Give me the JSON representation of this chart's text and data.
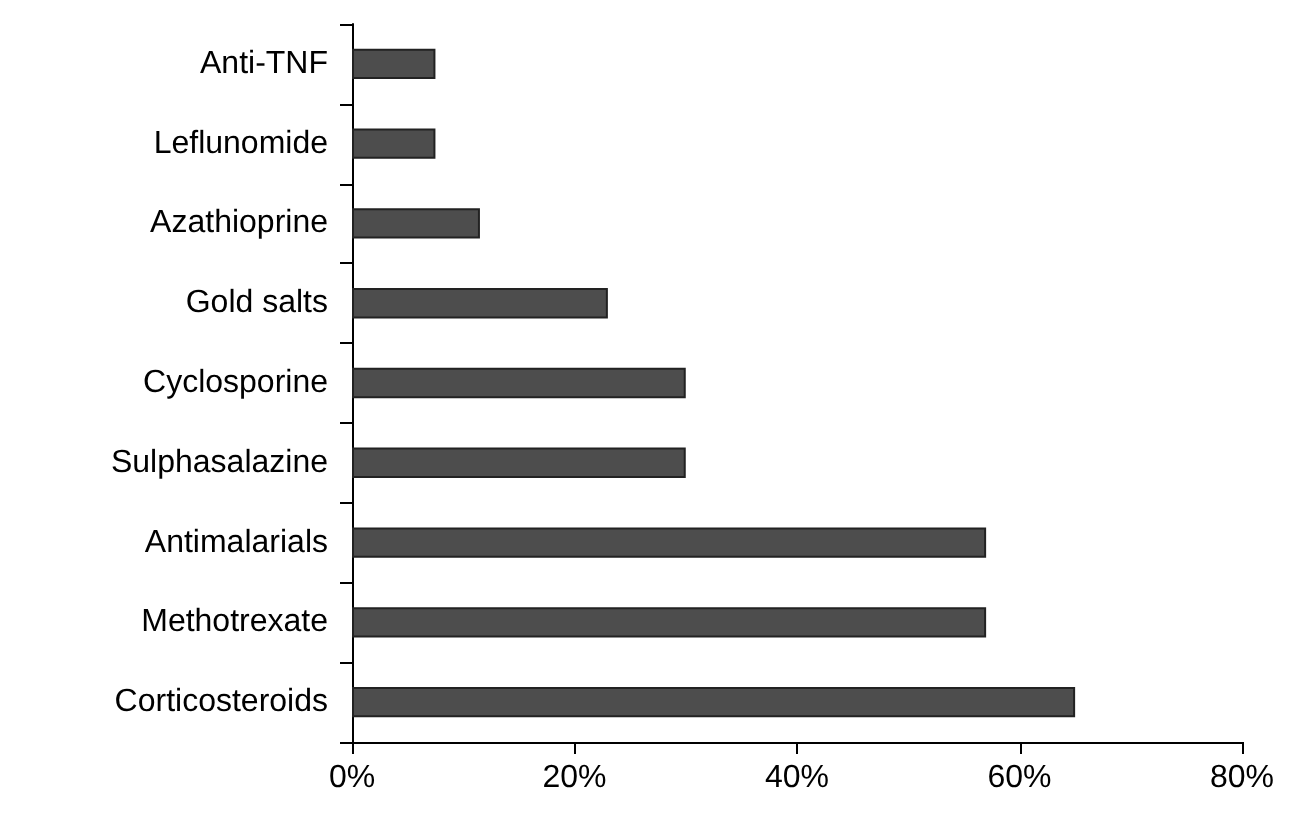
{
  "chart_data": {
    "type": "bar",
    "orientation": "horizontal",
    "categories": [
      "Anti-TNF",
      "Leflunomide",
      "Azathioprine",
      "Gold salts",
      "Cyclosporine",
      "Sulphasalazine",
      "Antimalarials",
      "Methotrexate",
      "Corticosteroids"
    ],
    "values": [
      7.5,
      7.5,
      11.5,
      23,
      30,
      30,
      57,
      57,
      65
    ],
    "color": "#4d4d4d",
    "xlim": [
      0,
      80
    ],
    "xticks": [
      {
        "value": 0,
        "label": "0%"
      },
      {
        "value": 20,
        "label": "20%"
      },
      {
        "value": 40,
        "label": "40%"
      },
      {
        "value": 60,
        "label": "60%"
      },
      {
        "value": 80,
        "label": "80%"
      }
    ],
    "grid": false
  }
}
